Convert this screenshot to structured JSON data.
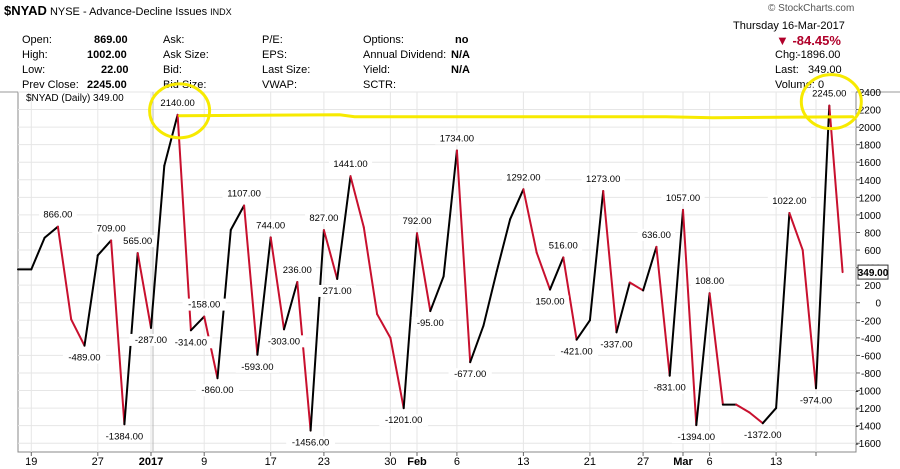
{
  "header": {
    "symbol": "$NYAD",
    "exchange": "NYSE",
    "description": "Advance-Decline Issues",
    "index_tag": "INDX",
    "copyright": "© StockCharts.com",
    "date": "Thursday  16-Mar-2017",
    "open_label": "Open:",
    "open_value": "869.00",
    "high_label": "High:",
    "high_value": "1002.00",
    "low_label": "Low:",
    "low_value": "22.00",
    "prev_close_label": "Prev Close:",
    "prev_close_value": "2245.00",
    "ask_label": "Ask:",
    "ask_size_label": "Ask Size:",
    "bid_label": "Bid:",
    "bid_size_label": "Bid Size:",
    "pe_label": "P/E:",
    "eps_label": "EPS:",
    "last_size_label": "Last Size:",
    "vwap_label": "VWAP:",
    "options_label": "Options:",
    "options_value": "no",
    "annual_dividend_label": "Annual Dividend:",
    "annual_dividend_value": "N/A",
    "yield_label": "Yield:",
    "yield_value": "N/A",
    "sctr_label": "SCTR:",
    "change_pct": "▼ -84.45%",
    "chg_label": "Chg:",
    "chg_value": "-1896.00",
    "last_label": "Last:",
    "last_value": "349.00",
    "volume_label": "Volume:",
    "volume_value": "0"
  },
  "colors": {
    "up": "#000000",
    "down": "#c8102e",
    "highlight": "#f7ea00",
    "grid": "#e6e6e6",
    "last_price_box": "#333333"
  },
  "chart_data": {
    "type": "line",
    "title": "$NYAD (Daily) 349.00",
    "legend_label": "$NYAD (Daily) 349.00",
    "ylim": [
      -1700,
      2400
    ],
    "y_ticks": [
      -1600,
      -1400,
      -1200,
      -1000,
      -800,
      -600,
      -400,
      -200,
      0,
      200,
      400,
      600,
      800,
      1000,
      1200,
      1400,
      1600,
      1800,
      2000,
      2200,
      2400
    ],
    "x_tick_labels": [
      {
        "index": 1,
        "label": "19"
      },
      {
        "index": 6,
        "label": "27"
      },
      {
        "index": 10,
        "label": "2017"
      },
      {
        "index": 14,
        "label": "9"
      },
      {
        "index": 19,
        "label": "17"
      },
      {
        "index": 23,
        "label": "23"
      },
      {
        "index": 28,
        "label": "30"
      },
      {
        "index": 30,
        "label": "Feb"
      },
      {
        "index": 33,
        "label": "6"
      },
      {
        "index": 38,
        "label": "13"
      },
      {
        "index": 43,
        "label": "21"
      },
      {
        "index": 47,
        "label": "27"
      },
      {
        "index": 50,
        "label": "Mar"
      },
      {
        "index": 52,
        "label": "6"
      },
      {
        "index": 57,
        "label": "13"
      },
      {
        "index": 60,
        "label": ""
      }
    ],
    "values": [
      380,
      380,
      740,
      866,
      -190,
      -489,
      540,
      709,
      -1384,
      565,
      -287,
      1560,
      2140,
      -314,
      -158,
      -860,
      830,
      1107,
      -593,
      744,
      -303,
      236,
      -1456,
      827,
      271,
      1441,
      860,
      -130,
      -400,
      -1201,
      792,
      -95,
      300,
      1734,
      -677,
      -260,
      360,
      950,
      1292,
      570,
      150,
      516,
      -421,
      -200,
      1273,
      -337,
      230,
      140,
      636,
      -831,
      1057,
      -1394,
      108,
      -1160,
      -1160,
      -1250,
      -1372,
      -1200,
      1022,
      600,
      -974,
      2245,
      349
    ],
    "point_labels": [
      {
        "index": 3,
        "text": "866.00",
        "pos": "above"
      },
      {
        "index": 5,
        "text": "-489.00",
        "pos": "below"
      },
      {
        "index": 7,
        "text": "709.00",
        "pos": "above"
      },
      {
        "index": 8,
        "text": "-1384.00",
        "pos": "below"
      },
      {
        "index": 9,
        "text": "565.00",
        "pos": "above"
      },
      {
        "index": 10,
        "text": "-287.00",
        "pos": "below"
      },
      {
        "index": 12,
        "text": "2140.00",
        "pos": "above"
      },
      {
        "index": 13,
        "text": "-314.00",
        "pos": "below"
      },
      {
        "index": 14,
        "text": "-158.00",
        "pos": "above"
      },
      {
        "index": 15,
        "text": "-860.00",
        "pos": "below"
      },
      {
        "index": 17,
        "text": "1107.00",
        "pos": "above"
      },
      {
        "index": 18,
        "text": "-593.00",
        "pos": "below"
      },
      {
        "index": 19,
        "text": "744.00",
        "pos": "above"
      },
      {
        "index": 20,
        "text": "-303.00",
        "pos": "below"
      },
      {
        "index": 21,
        "text": "236.00",
        "pos": "above"
      },
      {
        "index": 22,
        "text": "-1456.00",
        "pos": "below"
      },
      {
        "index": 23,
        "text": "827.00",
        "pos": "above"
      },
      {
        "index": 24,
        "text": "271.00",
        "pos": "below"
      },
      {
        "index": 25,
        "text": "1441.00",
        "pos": "above"
      },
      {
        "index": 29,
        "text": "-1201.00",
        "pos": "below"
      },
      {
        "index": 30,
        "text": "792.00",
        "pos": "above"
      },
      {
        "index": 31,
        "text": "-95.00",
        "pos": "below"
      },
      {
        "index": 33,
        "text": "1734.00",
        "pos": "above"
      },
      {
        "index": 34,
        "text": "-677.00",
        "pos": "below"
      },
      {
        "index": 38,
        "text": "1292.00",
        "pos": "above"
      },
      {
        "index": 40,
        "text": "150.00",
        "pos": "below"
      },
      {
        "index": 41,
        "text": "516.00",
        "pos": "above"
      },
      {
        "index": 42,
        "text": "-421.00",
        "pos": "below"
      },
      {
        "index": 44,
        "text": "1273.00",
        "pos": "above"
      },
      {
        "index": 45,
        "text": "-337.00",
        "pos": "below"
      },
      {
        "index": 48,
        "text": "636.00",
        "pos": "above"
      },
      {
        "index": 49,
        "text": "-831.00",
        "pos": "below"
      },
      {
        "index": 50,
        "text": "1057.00",
        "pos": "above"
      },
      {
        "index": 51,
        "text": "-1394.00",
        "pos": "below"
      },
      {
        "index": 52,
        "text": "108.00",
        "pos": "above"
      },
      {
        "index": 56,
        "text": "-1372.00",
        "pos": "below"
      },
      {
        "index": 58,
        "text": "1022.00",
        "pos": "above"
      },
      {
        "index": 60,
        "text": "-974.00",
        "pos": "below"
      },
      {
        "index": 61,
        "text": "2245.00",
        "pos": "above"
      }
    ],
    "last_value_label": "349.00",
    "annotations": [
      {
        "type": "circle",
        "index": 12,
        "note": "yellow circle around 2140.00 peak"
      },
      {
        "type": "circle",
        "index": 61,
        "note": "yellow circle around 2245.00 peak"
      },
      {
        "type": "hand_line",
        "from_index": 12,
        "to_index": 62,
        "value": 2130,
        "note": "yellow line connecting the two peaks"
      }
    ]
  }
}
